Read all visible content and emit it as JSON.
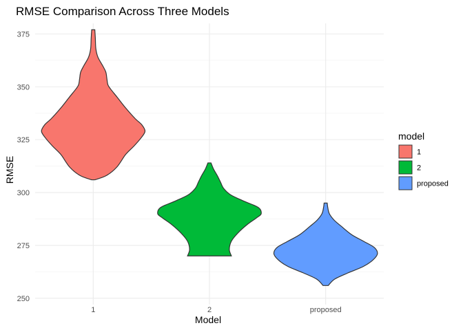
{
  "chart_data": {
    "type": "violin",
    "title": "RMSE Comparison Across Three Models",
    "xlabel": "Model",
    "ylabel": "RMSE",
    "ylim": [
      247,
      380
    ],
    "yticks": [
      250,
      275,
      300,
      325,
      350,
      375
    ],
    "grid": true,
    "categories": [
      "1",
      "2",
      "proposed"
    ],
    "legend": {
      "title": "model",
      "position": "right",
      "entries": [
        "1",
        "2",
        "proposed"
      ]
    },
    "series": [
      {
        "category": "1",
        "color": "#F8766D",
        "min": 306,
        "max": 377,
        "density_profile": [
          [
            306,
            0.03
          ],
          [
            308,
            0.25
          ],
          [
            312,
            0.45
          ],
          [
            318,
            0.62
          ],
          [
            322,
            0.78
          ],
          [
            326,
            0.92
          ],
          [
            329,
            0.99
          ],
          [
            332,
            0.93
          ],
          [
            335,
            0.8
          ],
          [
            340,
            0.62
          ],
          [
            345,
            0.46
          ],
          [
            349,
            0.33
          ],
          [
            351,
            0.28
          ],
          [
            354,
            0.26
          ],
          [
            357,
            0.24
          ],
          [
            360,
            0.18
          ],
          [
            364,
            0.09
          ],
          [
            368,
            0.05
          ],
          [
            373,
            0.04
          ],
          [
            377,
            0.03
          ]
        ]
      },
      {
        "category": "2",
        "color": "#00BA38",
        "min": 270,
        "max": 314,
        "density_profile": [
          [
            270,
            0.42
          ],
          [
            273,
            0.38
          ],
          [
            277,
            0.42
          ],
          [
            281,
            0.55
          ],
          [
            285,
            0.73
          ],
          [
            288,
            0.9
          ],
          [
            290,
            0.99
          ],
          [
            293,
            0.93
          ],
          [
            296,
            0.65
          ],
          [
            299,
            0.4
          ],
          [
            302,
            0.27
          ],
          [
            305,
            0.21
          ],
          [
            308,
            0.15
          ],
          [
            311,
            0.08
          ],
          [
            314,
            0.03
          ]
        ]
      },
      {
        "category": "proposed",
        "color": "#619CFF",
        "min": 256,
        "max": 295,
        "density_profile": [
          [
            256,
            0.05
          ],
          [
            259,
            0.17
          ],
          [
            262,
            0.43
          ],
          [
            265,
            0.72
          ],
          [
            268,
            0.9
          ],
          [
            271,
            0.99
          ],
          [
            274,
            0.93
          ],
          [
            277,
            0.72
          ],
          [
            280,
            0.5
          ],
          [
            284,
            0.3
          ],
          [
            287,
            0.16
          ],
          [
            290,
            0.07
          ],
          [
            293,
            0.04
          ],
          [
            295,
            0.03
          ]
        ]
      }
    ]
  }
}
